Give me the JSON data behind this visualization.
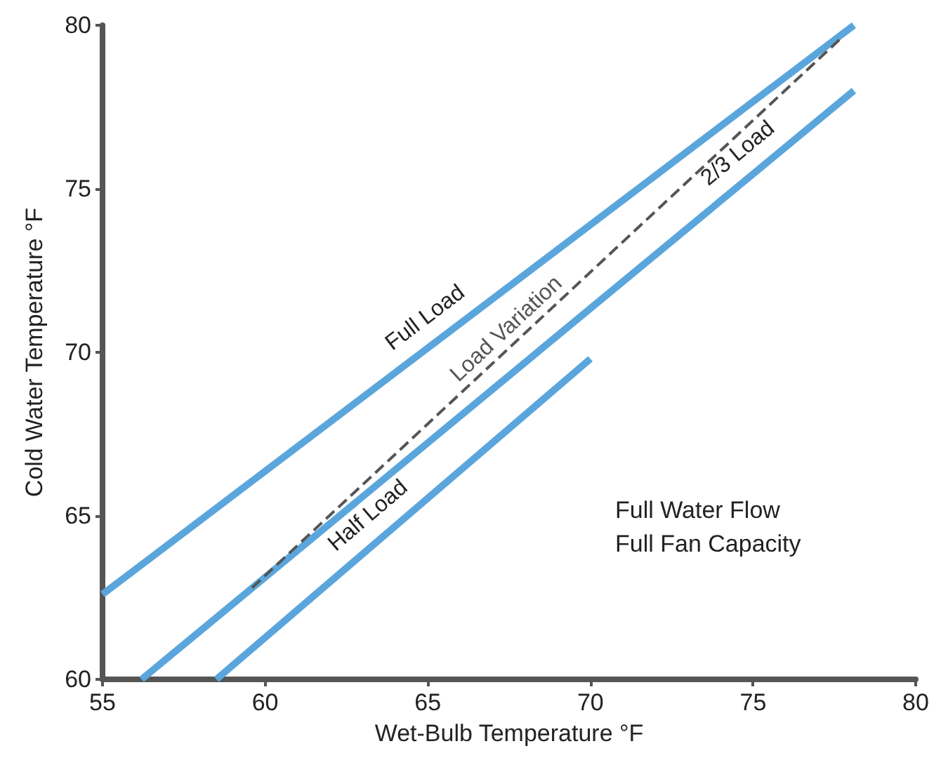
{
  "chart_data": {
    "type": "line",
    "xlabel": "Wet-Bulb Temperature °F",
    "ylabel": "Cold Water Temperature °F",
    "xlim": [
      55,
      80
    ],
    "xticks": [
      55,
      60,
      65,
      70,
      75,
      80
    ],
    "ylim": [
      60,
      80
    ],
    "yticks": [
      60,
      65,
      70,
      75,
      80
    ],
    "grid": false,
    "legend": false,
    "marker": "none",
    "series": [
      {
        "name": "Full Load",
        "color": "#5aa6dc",
        "x": [
          55,
          78.1
        ],
        "values": [
          62.6,
          80
        ],
        "line_style": "solid"
      },
      {
        "name": "2/3 Load",
        "color": "#5aa6dc",
        "x": [
          56.2,
          78.1
        ],
        "values": [
          60,
          78
        ],
        "line_style": "solid"
      },
      {
        "name": "Half Load",
        "color": "#5aa6dc",
        "x": [
          58.5,
          70
        ],
        "values": [
          60,
          69.8
        ],
        "line_style": "solid"
      },
      {
        "name": "Load Variation",
        "color": "#555555",
        "x": [
          59.6,
          77.7
        ],
        "values": [
          62.8,
          79.6
        ],
        "line_style": "dashed"
      }
    ],
    "annotations": [
      "Full Water Flow",
      "Full Fan Capacity"
    ]
  }
}
